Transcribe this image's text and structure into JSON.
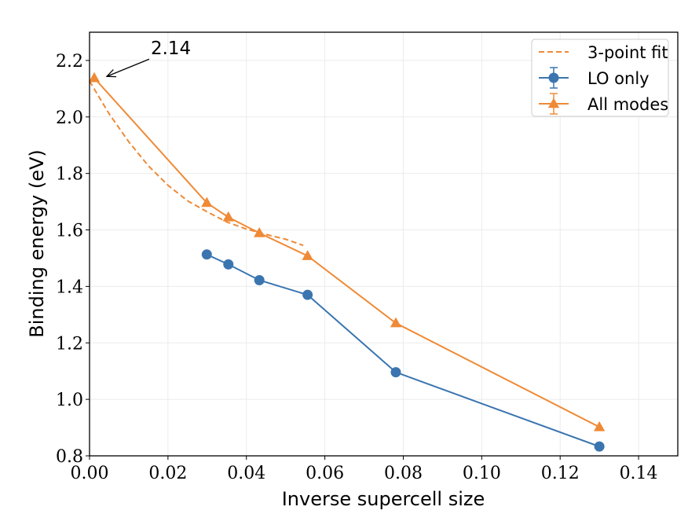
{
  "chart_data": {
    "type": "line",
    "title": "",
    "xlabel": "Inverse supercell size",
    "ylabel": "Binding energy (eV)",
    "xlim": [
      0.0,
      0.15
    ],
    "ylim": [
      0.8,
      2.3
    ],
    "xticks": [
      0.0,
      0.02,
      0.04,
      0.06,
      0.08,
      0.1,
      0.12,
      0.14
    ],
    "xtick_labels": [
      "0.00",
      "0.02",
      "0.04",
      "0.06",
      "0.08",
      "0.10",
      "0.12",
      "0.14"
    ],
    "yticks": [
      0.8,
      1.0,
      1.2,
      1.4,
      1.6,
      1.8,
      2.0,
      2.2
    ],
    "ytick_labels": [
      "0.8",
      "1.0",
      "1.2",
      "1.4",
      "1.6",
      "1.8",
      "2.0",
      "2.2"
    ],
    "grid": true,
    "legend_position": "top-right",
    "series": [
      {
        "name": "3-point fit",
        "style": "dashed",
        "color": "#EF8A36",
        "x": [
          0.0,
          0.005,
          0.01,
          0.015,
          0.02,
          0.025,
          0.03,
          0.035,
          0.04,
          0.045,
          0.05,
          0.0545
        ],
        "y": [
          2.127,
          2.011,
          1.912,
          1.827,
          1.758,
          1.703,
          1.664,
          1.628,
          1.603,
          1.584,
          1.567,
          1.545
        ]
      },
      {
        "name": "LO only",
        "marker": "circle",
        "color": "#3A75B0",
        "x": [
          0.0299,
          0.0354,
          0.0433,
          0.0556,
          0.0781,
          0.13
        ],
        "y": [
          1.513,
          1.478,
          1.422,
          1.37,
          1.096,
          0.833
        ]
      },
      {
        "name": "All modes",
        "marker": "triangle",
        "color": "#EF8A36",
        "x": [
          0.0012,
          0.0299,
          0.0354,
          0.0433,
          0.0556,
          0.0781,
          0.13
        ],
        "y": [
          2.138,
          1.696,
          1.645,
          1.589,
          1.508,
          1.27,
          0.902
        ]
      }
    ],
    "annotations": [
      {
        "text": "2.14",
        "x": 0.0012,
        "y": 2.138,
        "arrow": true
      }
    ]
  }
}
